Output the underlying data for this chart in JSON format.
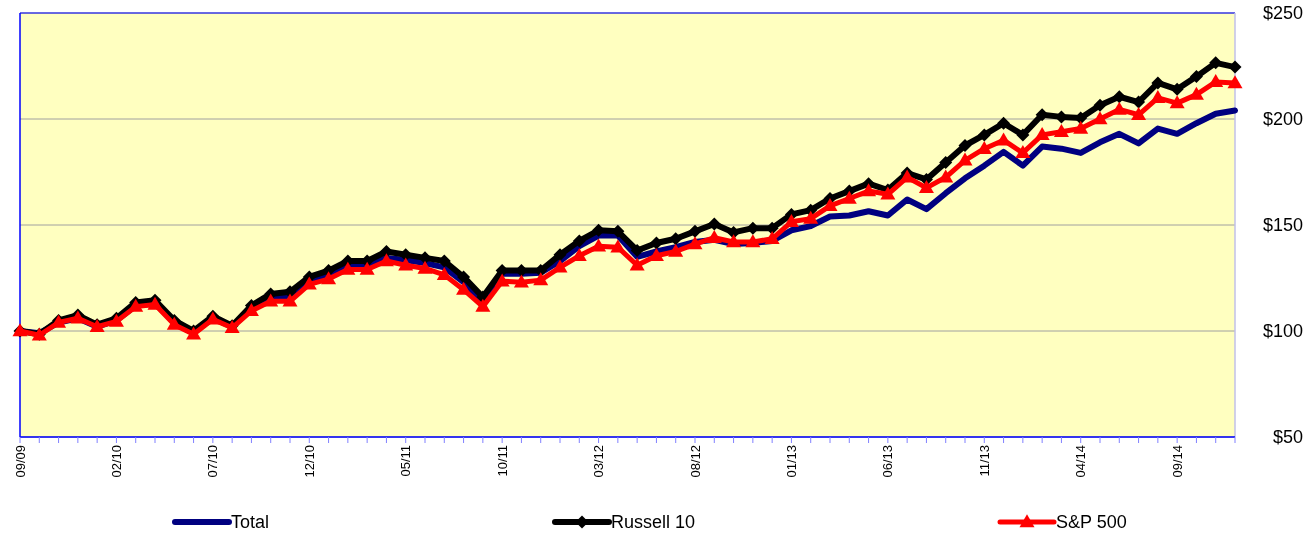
{
  "chart_data": {
    "type": "line",
    "categories": [
      "09/09",
      null,
      null,
      null,
      null,
      "02/10",
      null,
      null,
      null,
      null,
      "07/10",
      null,
      null,
      null,
      null,
      "12/10",
      null,
      null,
      null,
      null,
      "05/11",
      null,
      null,
      null,
      null,
      "10/11",
      null,
      null,
      null,
      null,
      "03/12",
      null,
      null,
      null,
      null,
      "08/12",
      null,
      null,
      null,
      null,
      "01/13",
      null,
      null,
      null,
      null,
      "06/13",
      null,
      null,
      null,
      null,
      "11/13",
      null,
      null,
      null,
      null,
      "04/14",
      null,
      null,
      null,
      null,
      "09/14",
      null,
      null,
      null
    ],
    "series": [
      {
        "name": "Total",
        "color": "#000080",
        "marker": "none",
        "values": [
          100,
          99,
          104,
          106,
          102,
          105,
          112,
          113,
          104,
          99.5,
          106,
          102,
          110.5,
          115,
          116,
          123.5,
          126,
          131,
          131,
          134.5,
          133.5,
          132,
          130,
          123,
          113.5,
          127,
          127,
          127.5,
          133,
          140,
          145,
          145,
          135,
          137.5,
          139.5,
          142,
          143,
          141,
          141.5,
          142.5,
          147.5,
          149.5,
          154,
          154.5,
          156.5,
          154.5,
          162,
          157.5,
          165,
          172,
          178,
          184.5,
          178,
          187,
          186,
          184,
          189,
          193,
          188.5,
          195.5,
          193,
          198,
          202.5,
          204
        ]
      },
      {
        "name": "Russell 10",
        "color": "#000000",
        "marker": "diamond",
        "values": [
          100,
          98.5,
          105,
          107.5,
          103,
          106,
          113.5,
          114.5,
          105,
          100,
          107,
          102.5,
          112,
          117.5,
          118.5,
          125.5,
          128.5,
          133,
          133,
          137.5,
          136,
          134.5,
          133,
          125.5,
          116,
          128.5,
          128.5,
          128.5,
          136,
          142.5,
          147.5,
          147,
          138,
          141.5,
          143.5,
          147,
          150.5,
          146.5,
          148.5,
          148.5,
          155,
          157,
          162.5,
          166,
          169.5,
          166.5,
          174.5,
          171.5,
          179.5,
          187.5,
          192.5,
          198,
          192.5,
          202,
          201,
          200.5,
          206.5,
          210.5,
          208,
          217,
          214,
          220,
          226.5,
          224.5
        ]
      },
      {
        "name": "S&P 500",
        "color": "#ff0000",
        "marker": "triangle",
        "values": [
          100,
          98,
          104,
          106,
          102,
          104.5,
          111.5,
          112.5,
          103,
          98.5,
          105.5,
          101.5,
          109.5,
          114,
          114,
          122,
          124.5,
          129,
          129,
          133,
          131,
          129.5,
          126.5,
          119.5,
          111.5,
          123.5,
          123,
          124,
          130,
          135.5,
          140,
          139.5,
          131,
          135.5,
          137.5,
          141,
          144,
          142,
          142,
          143.5,
          151.5,
          153,
          159,
          162.5,
          166,
          164.5,
          172.5,
          167.5,
          172.5,
          180.5,
          186,
          190,
          184,
          192.5,
          194,
          195.5,
          200,
          204.5,
          202,
          210,
          207.5,
          211.5,
          217.5,
          217
        ]
      }
    ],
    "ylim": [
      50,
      250
    ],
    "yticks": [
      {
        "value": 50,
        "label": "$50"
      },
      {
        "value": 100,
        "label": "$100"
      },
      {
        "value": 150,
        "label": "$150"
      },
      {
        "value": 200,
        "label": "$200"
      },
      {
        "value": 250,
        "label": "$250"
      }
    ],
    "grid": "y",
    "legend": "bottom"
  }
}
